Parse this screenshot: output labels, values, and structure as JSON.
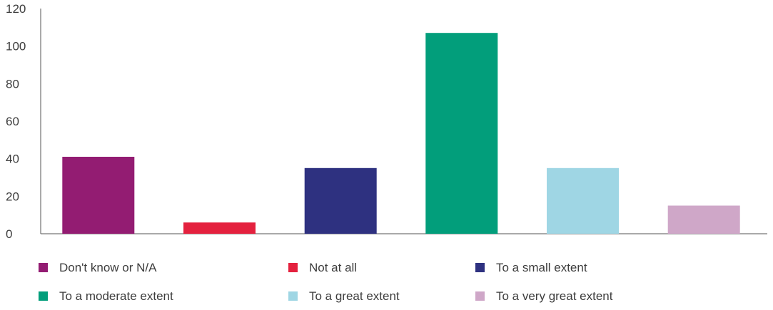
{
  "chart_data": {
    "type": "bar",
    "title": "",
    "xlabel": "",
    "ylabel": "",
    "ylim": [
      0,
      120
    ],
    "yticks": [
      0,
      20,
      40,
      60,
      80,
      100,
      120
    ],
    "grid": false,
    "legend_placement": "bottom",
    "categories": [
      "Don't know or N/A",
      "Not at all",
      "To a small extent",
      "To a moderate extent",
      "To a great extent",
      "To a very great extent"
    ],
    "values": [
      41,
      6,
      35,
      107,
      35,
      15
    ],
    "colors": [
      "#931c72",
      "#e4213e",
      "#2e3180",
      "#029e7b",
      "#9fd6e4",
      "#cfa7c8"
    ]
  }
}
